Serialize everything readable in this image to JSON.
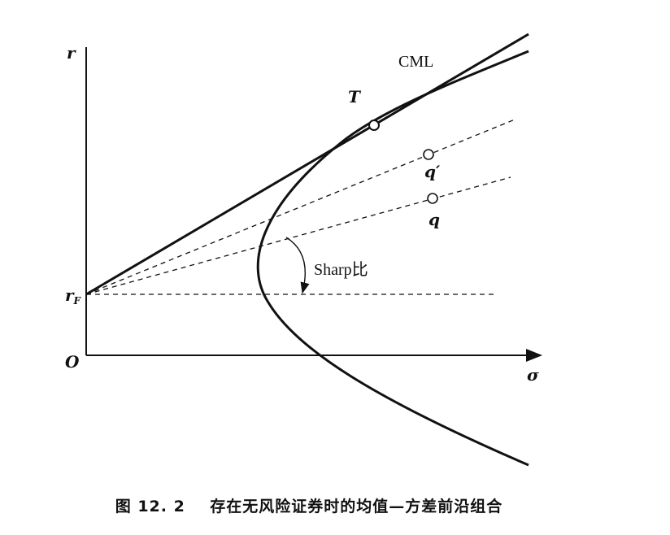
{
  "labels": {
    "y_axis": "r",
    "x_axis": "σ",
    "origin": "O",
    "risk_free": "r",
    "risk_free_sub": "F",
    "tangent_point": "T",
    "cml": "CML",
    "q_prime": "q′",
    "q": "q",
    "sharp": "Sharp比"
  },
  "caption": {
    "prefix": "图 12. 2",
    "text": "存在无风险证券时的均值—方差前沿组合"
  }
}
